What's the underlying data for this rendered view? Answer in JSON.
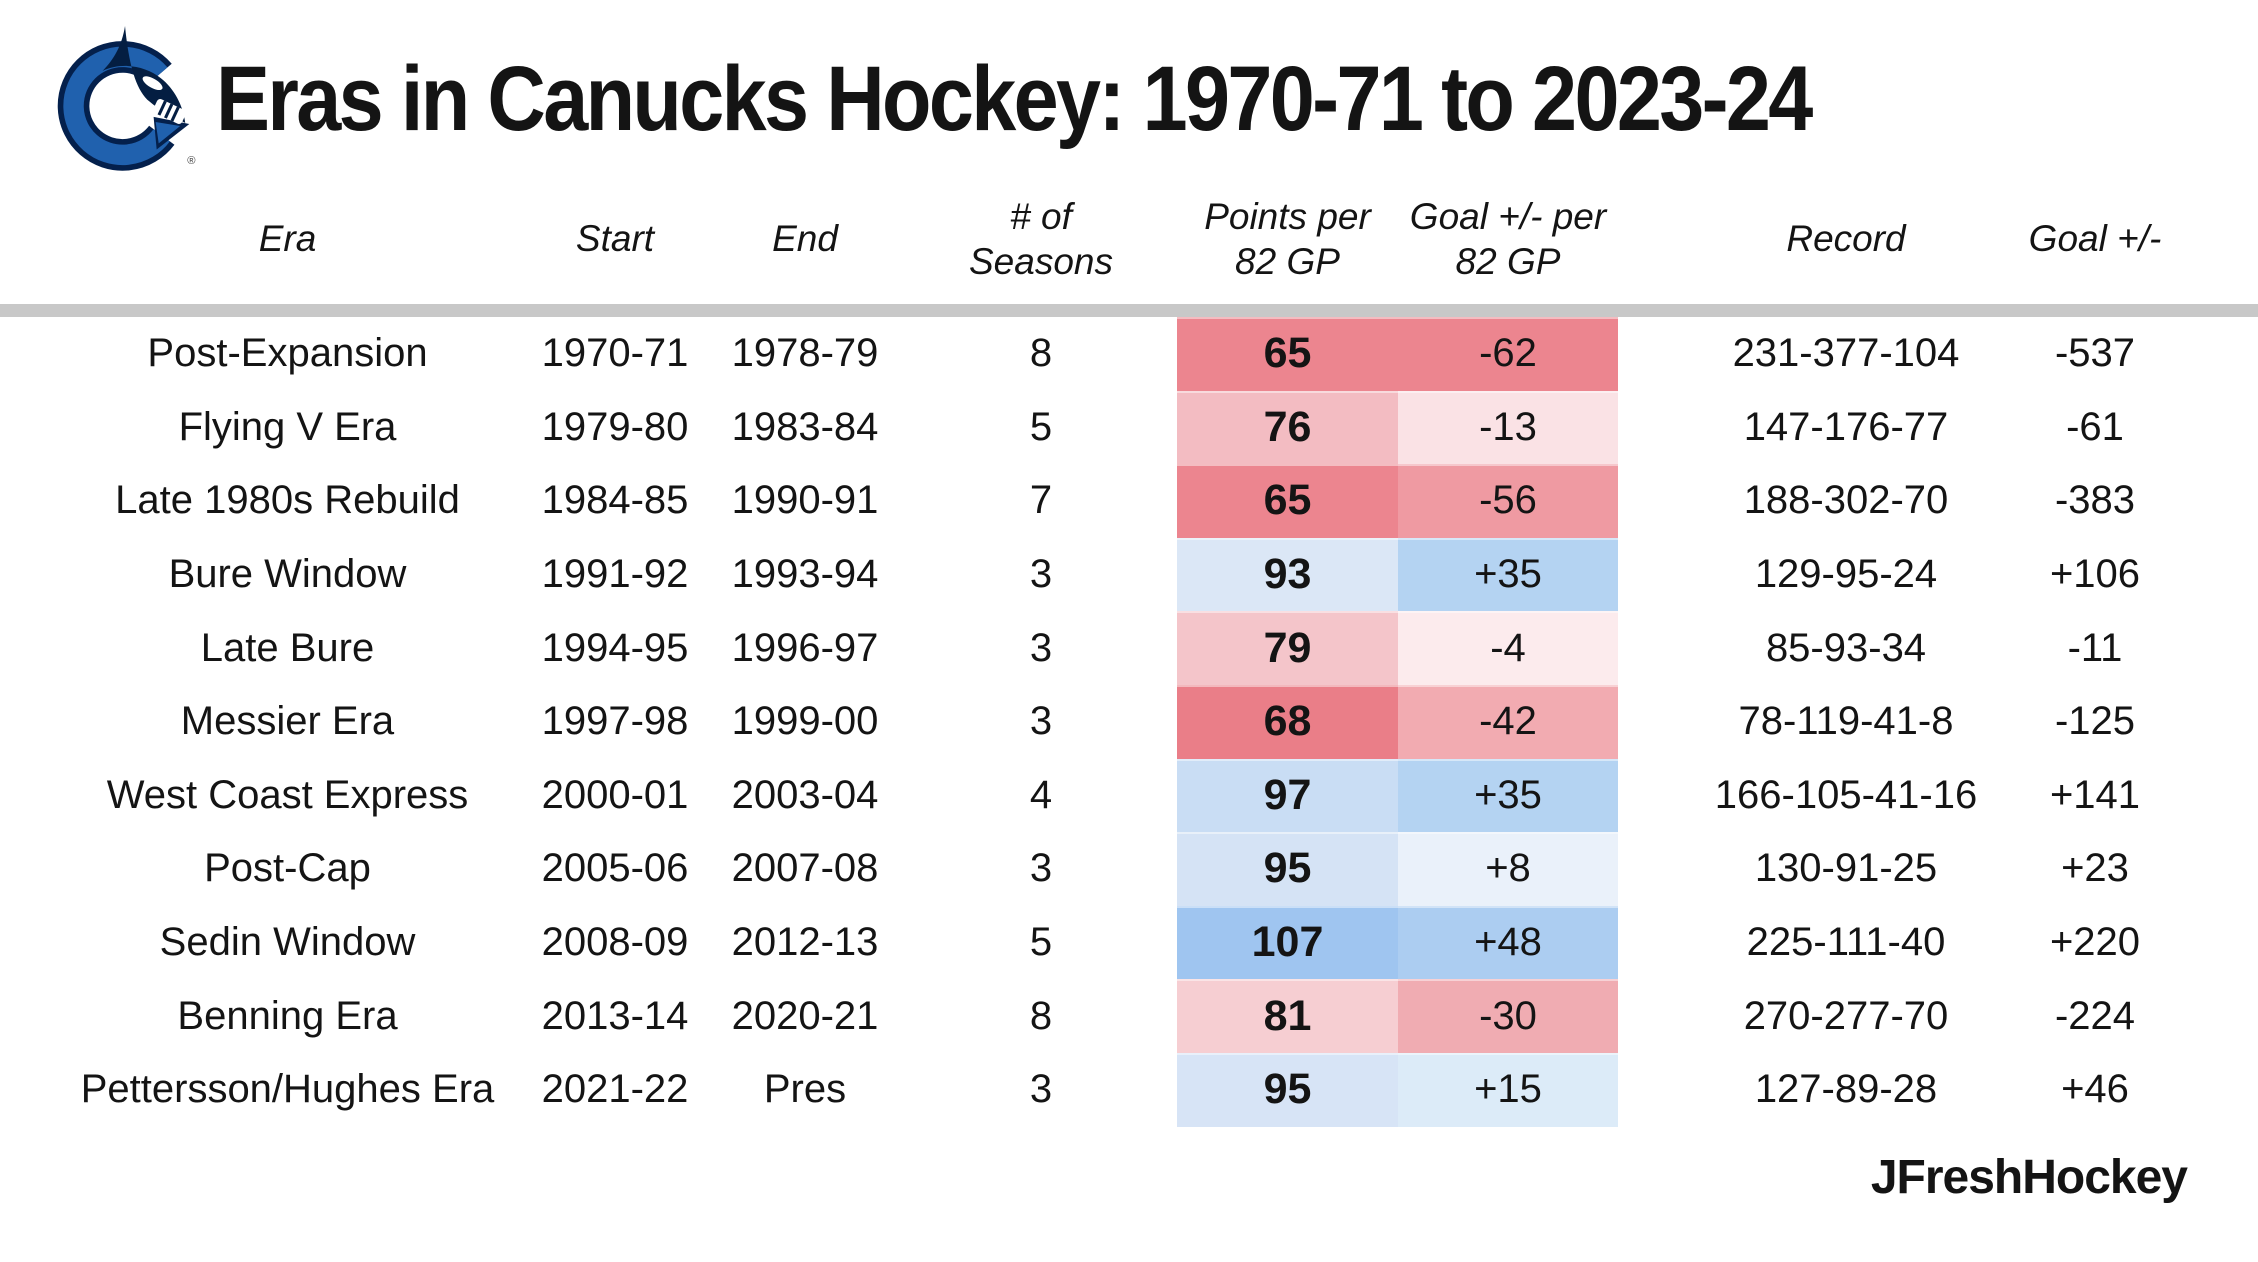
{
  "credit": "JFreshHockey",
  "logo": {
    "name": "vancouver-canucks-orca-logo",
    "registered_mark": "®"
  },
  "colors": {
    "background": "#ffffff",
    "text": "#141414",
    "divider": "#c8c8c8",
    "heat_negative_strong": "#ec858f",
    "heat_positive_strong": "#9fc5f0"
  },
  "chart_data": {
    "type": "table",
    "title": "Eras in Canucks Hockey: 1970-71 to 2023-24",
    "columns": [
      "Era",
      "Start",
      "End",
      "# of Seasons",
      "Points per 82 GP",
      "Goal +/- per 82 GP",
      "Record",
      "Goal +/-"
    ],
    "headers": [
      {
        "l1": "Era",
        "l2": ""
      },
      {
        "l1": "Start",
        "l2": ""
      },
      {
        "l1": "End",
        "l2": ""
      },
      {
        "l1": "# of",
        "l2": "Seasons"
      },
      {
        "l1": "Points per",
        "l2": "82 GP"
      },
      {
        "l1": "Goal +/- per",
        "l2": "82 GP"
      },
      {
        "l1": "Record",
        "l2": ""
      },
      {
        "l1": "Goal +/-",
        "l2": ""
      }
    ],
    "rows": [
      {
        "era": "Post-Expansion",
        "start": "1970-71",
        "end": "1978-79",
        "seasons": "8",
        "points_per_82": "65",
        "goal_diff_per_82": "-62",
        "record": "231-377-104",
        "goal_diff": "-537",
        "points_bg": "#ec858f",
        "goal_diff_bg": "#ec858f"
      },
      {
        "era": "Flying V Era",
        "start": "1979-80",
        "end": "1983-84",
        "seasons": "5",
        "points_per_82": "76",
        "goal_diff_per_82": "-13",
        "record": "147-176-77",
        "goal_diff": "-61",
        "points_bg": "#f3bcc2",
        "goal_diff_bg": "#fae2e5"
      },
      {
        "era": "Late 1980s Rebuild",
        "start": "1984-85",
        "end": "1990-91",
        "seasons": "7",
        "points_per_82": "65",
        "goal_diff_per_82": "-56",
        "record": "188-302-70",
        "goal_diff": "-383",
        "points_bg": "#ec858f",
        "goal_diff_bg": "#ef9aa2"
      },
      {
        "era": "Bure Window",
        "start": "1991-92",
        "end": "1993-94",
        "seasons": "3",
        "points_per_82": "93",
        "goal_diff_per_82": "+35",
        "record": "129-95-24",
        "goal_diff": "+106",
        "points_bg": "#dbe7f6",
        "goal_diff_bg": "#b4d3f2"
      },
      {
        "era": "Late Bure",
        "start": "1994-95",
        "end": "1996-97",
        "seasons": "3",
        "points_per_82": "79",
        "goal_diff_per_82": "-4",
        "record": "85-93-34",
        "goal_diff": "-11",
        "points_bg": "#f4c5ca",
        "goal_diff_bg": "#fcebed"
      },
      {
        "era": "Messier Era",
        "start": "1997-98",
        "end": "1999-00",
        "seasons": "3",
        "points_per_82": "68",
        "goal_diff_per_82": "-42",
        "record": "78-119-41-8",
        "goal_diff": "-125",
        "points_bg": "#ea7e88",
        "goal_diff_bg": "#f2abb1"
      },
      {
        "era": "West Coast Express",
        "start": "2000-01",
        "end": "2003-04",
        "seasons": "4",
        "points_per_82": "97",
        "goal_diff_per_82": "+35",
        "record": "166-105-41-16",
        "goal_diff": "+141",
        "points_bg": "#c9ddf4",
        "goal_diff_bg": "#b4d3f2"
      },
      {
        "era": "Post-Cap",
        "start": "2005-06",
        "end": "2007-08",
        "seasons": "3",
        "points_per_82": "95",
        "goal_diff_per_82": "+8",
        "record": "130-91-25",
        "goal_diff": "+23",
        "points_bg": "#d5e3f5",
        "goal_diff_bg": "#eaf1fa"
      },
      {
        "era": "Sedin Window",
        "start": "2008-09",
        "end": "2012-13",
        "seasons": "5",
        "points_per_82": "107",
        "goal_diff_per_82": "+48",
        "record": "225-111-40",
        "goal_diff": "+220",
        "points_bg": "#9fc5f0",
        "goal_diff_bg": "#accdf1"
      },
      {
        "era": "Benning Era",
        "start": "2013-14",
        "end": "2020-21",
        "seasons": "8",
        "points_per_82": "81",
        "goal_diff_per_82": "-30",
        "record": "270-277-70",
        "goal_diff": "-224",
        "points_bg": "#f6ced2",
        "goal_diff_bg": "#f0acb2"
      },
      {
        "era": "Pettersson/Hughes Era",
        "start": "2021-22",
        "end": "Pres",
        "seasons": "3",
        "points_per_82": "95",
        "goal_diff_per_82": "+15",
        "record": "127-89-28",
        "goal_diff": "+46",
        "points_bg": "#d7e4f6",
        "goal_diff_bg": "#dcebf8"
      }
    ]
  }
}
